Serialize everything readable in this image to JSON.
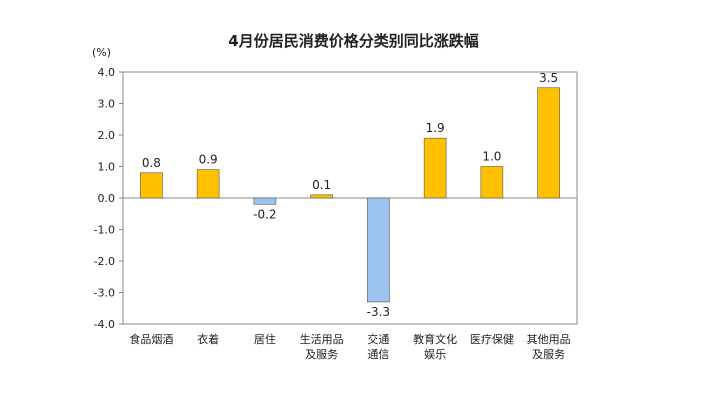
{
  "chart_data": {
    "type": "bar",
    "title": "4月份居民消费价格分类别同比涨跌幅",
    "unit": "(%)",
    "categories": [
      [
        "食品烟酒"
      ],
      [
        "衣着"
      ],
      [
        "居住"
      ],
      [
        "生活用品",
        "及服务"
      ],
      [
        "交通",
        "通信"
      ],
      [
        "教育文化",
        "娱乐"
      ],
      [
        "医疗保健"
      ],
      [
        "其他用品",
        "及服务"
      ]
    ],
    "values": [
      0.8,
      0.9,
      -0.2,
      0.1,
      -3.3,
      1.9,
      1.0,
      3.5
    ],
    "value_labels": [
      "0.8",
      "0.9",
      "-0.2",
      "0.1",
      "-3.3",
      "1.9",
      "1.0",
      "3.5"
    ],
    "ylim": [
      -4.0,
      4.0
    ],
    "yticks": [
      4.0,
      3.0,
      2.0,
      1.0,
      0.0,
      -1.0,
      -2.0,
      -3.0,
      -4.0
    ],
    "ytick_labels": [
      "4.0",
      "3.0",
      "2.0",
      "1.0",
      "0.0",
      "-1.0",
      "-2.0",
      "-3.0",
      "-4.0"
    ],
    "colors": {
      "positive": "#FFC000",
      "negative": "#9DC3F0",
      "bar_stroke": "#555555",
      "axis": "#888888"
    },
    "grid": false,
    "legend": "none"
  }
}
